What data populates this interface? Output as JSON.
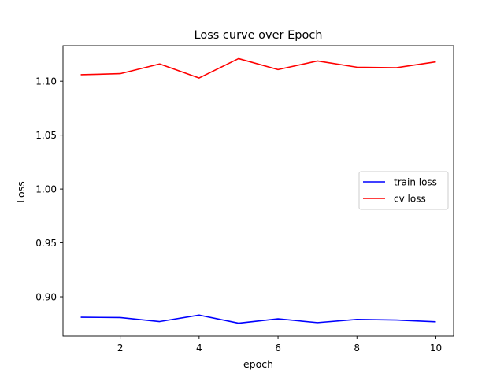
{
  "chart_data": {
    "type": "line",
    "title": "Loss curve over Epoch",
    "xlabel": "epoch",
    "ylabel": "Loss",
    "x": [
      1,
      2,
      3,
      4,
      5,
      6,
      7,
      8,
      9,
      10
    ],
    "xlim": [
      0.55,
      10.45
    ],
    "ylim": [
      0.8635,
      1.133
    ],
    "xticks": [
      2,
      4,
      6,
      8,
      10
    ],
    "xtick_labels": [
      "2",
      "4",
      "6",
      "8",
      "10"
    ],
    "yticks": [
      0.9,
      0.95,
      1.0,
      1.05,
      1.1
    ],
    "ytick_labels": [
      "0.90",
      "0.95",
      "1.00",
      "1.05",
      "1.10"
    ],
    "grid": false,
    "legend_position": "center-right",
    "series": [
      {
        "name": "train loss",
        "color": "#0000ff",
        "values": [
          0.881,
          0.8807,
          0.877,
          0.883,
          0.8755,
          0.8795,
          0.876,
          0.879,
          0.8784,
          0.8768
        ]
      },
      {
        "name": "cv loss",
        "color": "#ff0000",
        "values": [
          1.106,
          1.107,
          1.116,
          1.103,
          1.121,
          1.1108,
          1.1188,
          1.113,
          1.1125,
          1.118
        ]
      }
    ]
  }
}
